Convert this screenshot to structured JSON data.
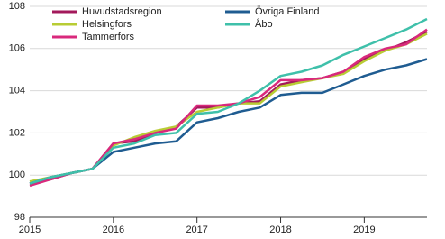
{
  "chart_data": {
    "type": "line",
    "categories": [
      "2015",
      null,
      null,
      null,
      "2016",
      null,
      null,
      null,
      "2017",
      null,
      null,
      null,
      "2018",
      null,
      null,
      null,
      "2019",
      null,
      null,
      null
    ],
    "series": [
      {
        "name": "Huvudstadsregion",
        "color": "#a3195b",
        "values": [
          99.6,
          99.8,
          100.1,
          100.3,
          101.5,
          101.6,
          102.0,
          102.3,
          103.2,
          103.2,
          103.4,
          103.5,
          104.3,
          104.5,
          104.6,
          104.9,
          105.5,
          105.9,
          106.3,
          106.8
        ]
      },
      {
        "name": "Helsingfors",
        "color": "#b8cc34",
        "values": [
          99.7,
          99.9,
          100.1,
          100.3,
          101.4,
          101.8,
          102.1,
          102.3,
          103.0,
          103.2,
          103.4,
          103.4,
          104.2,
          104.4,
          104.6,
          104.8,
          105.4,
          105.9,
          106.2,
          106.7
        ]
      },
      {
        "name": "Tammerfors",
        "color": "#d9297c",
        "values": [
          99.5,
          99.8,
          100.1,
          100.3,
          101.5,
          101.7,
          102.0,
          102.2,
          103.3,
          103.3,
          103.4,
          103.7,
          104.5,
          104.5,
          104.6,
          104.9,
          105.6,
          106.0,
          106.2,
          106.9
        ]
      },
      {
        "name": "Övriga Finland",
        "color": "#1f5c91",
        "values": [
          99.6,
          99.9,
          100.1,
          100.3,
          101.1,
          101.3,
          101.5,
          101.6,
          102.5,
          102.7,
          103.0,
          103.2,
          103.8,
          103.9,
          103.9,
          104.3,
          104.7,
          105.0,
          105.2,
          105.5
        ]
      },
      {
        "name": "Åbo",
        "color": "#3fc0aa",
        "values": [
          99.6,
          99.9,
          100.1,
          100.3,
          101.3,
          101.5,
          101.9,
          102.0,
          102.9,
          103.0,
          103.4,
          104.0,
          104.7,
          104.9,
          105.2,
          105.7,
          106.1,
          106.5,
          106.9,
          107.4
        ]
      }
    ],
    "ylim": [
      98,
      108
    ],
    "yticks": [
      98,
      100,
      102,
      104,
      106,
      108
    ],
    "grid": true
  }
}
